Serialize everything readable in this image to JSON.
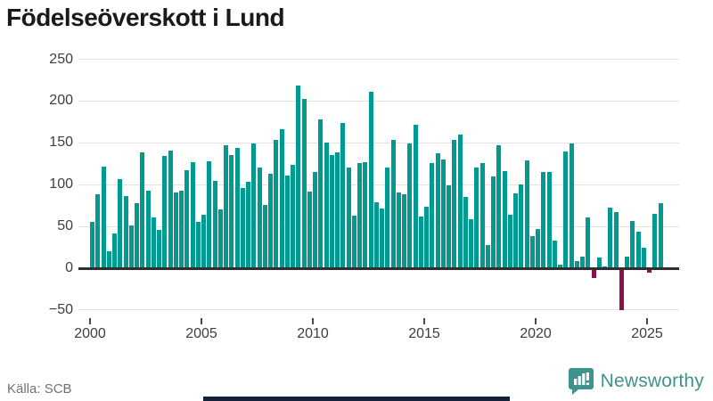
{
  "title": "Födelseöverskott i Lund",
  "source": "Källa: SCB",
  "brand": {
    "name": "Newsworthy",
    "icon": "newsworthy-bars-icon"
  },
  "colors": {
    "positive_bar": "#009a90",
    "negative_bar": "#8d104d",
    "grid": "#e3e3e3",
    "axis": "#2f2f2f",
    "tick_label": "#3d3d3d",
    "title_text": "#1a1a1a",
    "source_text": "#6e7377",
    "brand_teal": "#3e938e",
    "bottom_strip": "#15213b"
  },
  "chart_data": {
    "type": "bar",
    "title": "Födelseöverskott i Lund",
    "frequency": "quarterly",
    "start_year": 2000,
    "start_quarter": 1,
    "end_year": 2025,
    "end_quarter": 3,
    "grid": "horizontal",
    "legend": "none",
    "ylim": [
      -62,
      265
    ],
    "y_ticks": [
      250,
      200,
      150,
      100,
      50,
      0,
      -50
    ],
    "y_tick_labels": [
      "250",
      "200",
      "150",
      "100",
      "50",
      "0",
      "−50"
    ],
    "x_tick_labels": [
      "2000",
      "2005",
      "2010",
      "2015",
      "2020",
      "2025"
    ],
    "x_tick_quarter_indices": [
      0,
      20,
      40,
      60,
      80,
      100
    ],
    "series": [
      {
        "name": "Födelseöverskott",
        "values": [
          55,
          89,
          122,
          20,
          42,
          107,
          86,
          51,
          78,
          139,
          93,
          61,
          46,
          134,
          141,
          91,
          93,
          117,
          127,
          55,
          64,
          128,
          105,
          70,
          147,
          135,
          144,
          96,
          103,
          149,
          120,
          76,
          113,
          153,
          166,
          111,
          124,
          219,
          203,
          92,
          115,
          178,
          150,
          135,
          139,
          174,
          121,
          63,
          126,
          127,
          211,
          79,
          71,
          120,
          153,
          91,
          89,
          149,
          172,
          62,
          74,
          126,
          137,
          130,
          99,
          153,
          160,
          85,
          59,
          121,
          126,
          28,
          110,
          147,
          116,
          64,
          90,
          100,
          129,
          38,
          47,
          115,
          115,
          33,
          4,
          140,
          149,
          8,
          14,
          61,
          -10,
          13,
          2,
          72,
          67,
          -48,
          14,
          56,
          44,
          25,
          -3,
          65,
          78
        ]
      }
    ]
  }
}
